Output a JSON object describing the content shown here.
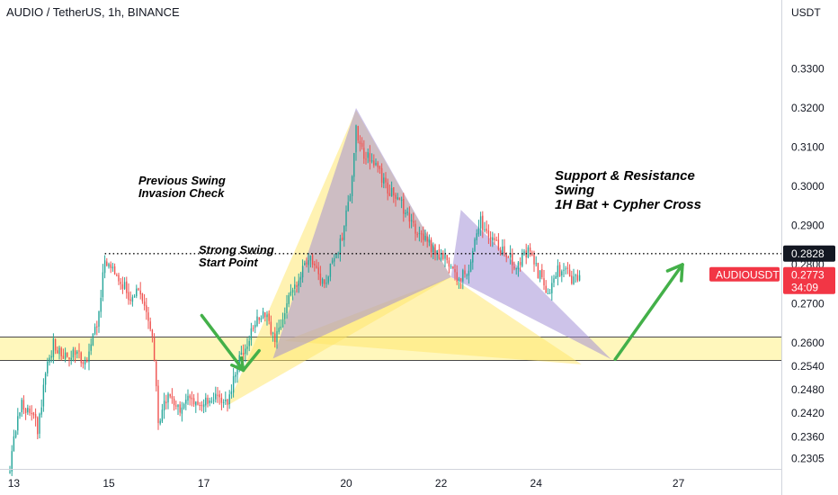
{
  "colors": {
    "up": "#26a69a",
    "down": "#ef5350",
    "zone_fill": "#fff6b0",
    "zone_line": "#4a4a4a",
    "pattern_yellow": "#ffe566",
    "pattern_purple": "#9b87d4",
    "arrow": "#43b049",
    "price_tag_black": "#131722",
    "price_tag_red": "#f23645"
  },
  "chart_data": {
    "type": "candlestick",
    "title": "AUDIO / TetherUS, 1h, BINANCE",
    "y_axis_unit": "USDT",
    "ylim": [
      0.2278,
      0.3476
    ],
    "y_ticks": [
      "0.3300",
      "0.3200",
      "0.3100",
      "0.3000",
      "0.2900",
      "0.2800",
      "0.2700",
      "0.2600",
      "0.2540",
      "0.2480",
      "0.2420",
      "0.2360",
      "0.2305"
    ],
    "x_ticks": [
      "13",
      "15",
      "17",
      "20",
      "22",
      "24",
      "27"
    ],
    "xlim": [
      "2021-10-12T17:00",
      "2021-10-29T04:00"
    ],
    "candle_interval": "1h",
    "price_path": [
      [
        "2021-10-12T22:00",
        0.2278
      ],
      [
        "2021-10-13T00:00",
        0.236
      ],
      [
        "2021-10-13T04:00",
        0.244
      ],
      [
        "2021-10-13T08:00",
        0.243
      ],
      [
        "2021-10-13T12:00",
        0.238
      ],
      [
        "2021-10-13T16:00",
        0.252
      ],
      [
        "2021-10-13T20:00",
        0.26
      ],
      [
        "2021-10-14T02:00",
        0.256
      ],
      [
        "2021-10-14T08:00",
        0.2575
      ],
      [
        "2021-10-14T12:00",
        0.255
      ],
      [
        "2021-10-14T18:00",
        0.264
      ],
      [
        "2021-10-14T22:00",
        0.281
      ],
      [
        "2021-10-15T02:00",
        0.28
      ],
      [
        "2021-10-15T06:00",
        0.276
      ],
      [
        "2021-10-15T10:00",
        0.272
      ],
      [
        "2021-10-15T14:00",
        0.273
      ],
      [
        "2021-10-15T18:00",
        0.269
      ],
      [
        "2021-10-15T22:00",
        0.262
      ],
      [
        "2021-10-16T01:00",
        0.24
      ],
      [
        "2021-10-16T06:00",
        0.247
      ],
      [
        "2021-10-16T12:00",
        0.243
      ],
      [
        "2021-10-16T18:00",
        0.246
      ],
      [
        "2021-10-17T00:00",
        0.244
      ],
      [
        "2021-10-17T06:00",
        0.247
      ],
      [
        "2021-10-17T12:00",
        0.244
      ],
      [
        "2021-10-17T18:00",
        0.256
      ],
      [
        "2021-10-18T00:00",
        0.263
      ],
      [
        "2021-10-18T06:00",
        0.268
      ],
      [
        "2021-10-18T12:00",
        0.261
      ],
      [
        "2021-10-18T18:00",
        0.27
      ],
      [
        "2021-10-19T00:00",
        0.277
      ],
      [
        "2021-10-19T06:00",
        0.283
      ],
      [
        "2021-10-19T10:00",
        0.276
      ],
      [
        "2021-10-19T14:00",
        0.276
      ],
      [
        "2021-10-19T18:00",
        0.282
      ],
      [
        "2021-10-19T22:00",
        0.287
      ],
      [
        "2021-10-20T02:00",
        0.298
      ],
      [
        "2021-10-20T05:00",
        0.315
      ],
      [
        "2021-10-20T09:00",
        0.308
      ],
      [
        "2021-10-20T14:00",
        0.306
      ],
      [
        "2021-10-20T20:00",
        0.3
      ],
      [
        "2021-10-21T02:00",
        0.297
      ],
      [
        "2021-10-21T08:00",
        0.291
      ],
      [
        "2021-10-21T14:00",
        0.288
      ],
      [
        "2021-10-21T20:00",
        0.284
      ],
      [
        "2021-10-22T02:00",
        0.282
      ],
      [
        "2021-10-22T08:00",
        0.276
      ],
      [
        "2021-10-22T14:00",
        0.279
      ],
      [
        "2021-10-22T20:00",
        0.291
      ],
      [
        "2021-10-23T02:00",
        0.287
      ],
      [
        "2021-10-23T08:00",
        0.283
      ],
      [
        "2021-10-23T14:00",
        0.28
      ],
      [
        "2021-10-23T20:00",
        0.283
      ],
      [
        "2021-10-24T02:00",
        0.277
      ],
      [
        "2021-10-24T06:00",
        0.272
      ],
      [
        "2021-10-24T10:00",
        0.278
      ],
      [
        "2021-10-24T14:00",
        0.279
      ],
      [
        "2021-10-24T18:00",
        0.276
      ],
      [
        "2021-10-24T22:00",
        0.2773
      ]
    ],
    "horizontal_levels": [
      {
        "kind": "dotted",
        "value": 0.2828,
        "label": "0.2828",
        "tag_color": "#131722"
      }
    ],
    "zones": [
      {
        "label": "",
        "from": 0.2555,
        "to": 0.2615
      }
    ],
    "last_price": {
      "symbol": "AUDIOUSDT",
      "value": "0.2773",
      "countdown": "34:09"
    },
    "harmonic_patterns": [
      {
        "color": "#ffe566",
        "points": [
          [
            "2021-10-17T12:00",
            0.244
          ],
          [
            "2021-10-20T05:00",
            0.3195
          ],
          [
            "2021-10-22T05:00",
            0.2768
          ],
          [
            "2021-10-18T17:00",
            0.2605
          ],
          [
            "2021-10-24T23:00",
            0.2545
          ]
        ]
      },
      {
        "color": "#9b87d4",
        "points": [
          [
            "2021-10-18T11:00",
            0.256
          ],
          [
            "2021-10-20T05:00",
            0.32
          ],
          [
            "2021-10-22T05:00",
            0.2768
          ],
          [
            "2021-10-22T10:00",
            0.294
          ],
          [
            "2021-10-25T14:00",
            0.2558
          ]
        ]
      }
    ],
    "annotations": [
      {
        "text": "Previous Swing\nInvasion Check",
        "size": 13
      },
      {
        "text": "Strong Swing\nStart Point",
        "size": 13
      },
      {
        "text": "Support & Resistance\nSwing\n1H Bat + Cypher Cross",
        "size": 15
      }
    ],
    "arrows": [
      {
        "from": [
          "2021-10-16T23:00",
          0.267
        ],
        "to": [
          "2021-10-17T20:00",
          0.253
        ],
        "head": "end",
        "also": [
          [
            "2021-10-17T20:00",
            0.253
          ],
          [
            "2021-10-18T04:00",
            0.258
          ]
        ]
      },
      {
        "from": [
          "2021-10-25T16:00",
          0.2558
        ],
        "to": [
          "2021-10-27T02:00",
          0.28
        ],
        "head": "end"
      }
    ]
  }
}
